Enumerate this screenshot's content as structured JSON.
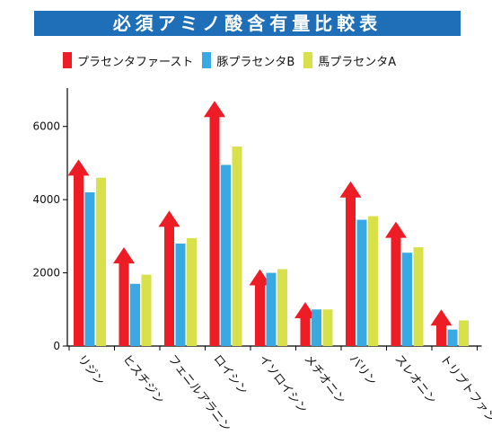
{
  "title": "必須アミノ酸含有量比較表",
  "legend": [
    {
      "label": "プラセンタファースト",
      "color": "#ee1c24"
    },
    {
      "label": "豚プラセンタB",
      "color": "#39a9e3"
    },
    {
      "label": "馬プラセンタA",
      "color": "#d8e04a"
    }
  ],
  "chart_data": {
    "type": "bar",
    "title": "必須アミノ酸含有量比較表",
    "xlabel": "",
    "ylabel": "",
    "ylim": [
      0,
      7000
    ],
    "yticks": [
      "0",
      "2000",
      "4000",
      "6000"
    ],
    "grid": false,
    "legend_position": "top",
    "categories": [
      "リジン",
      "ヒスチジン",
      "フェニルアラニン",
      "ロイシン",
      "イソロイシン",
      "メチオニン",
      "バリン",
      "スレオニン",
      "トリプトファン"
    ],
    "series": [
      {
        "name": "プラセンタファースト",
        "color": "#ee1c24",
        "values": [
          5100,
          2700,
          3700,
          6700,
          2100,
          1200,
          4500,
          3400,
          1000
        ]
      },
      {
        "name": "豚プラセンタB",
        "color": "#39a9e3",
        "values": [
          4200,
          1700,
          2800,
          4950,
          2000,
          1000,
          3450,
          2550,
          450
        ]
      },
      {
        "name": "馬プラセンタA",
        "color": "#d8e04a",
        "values": [
          4600,
          1950,
          2950,
          5450,
          2100,
          1000,
          3550,
          2700,
          700
        ]
      }
    ]
  }
}
